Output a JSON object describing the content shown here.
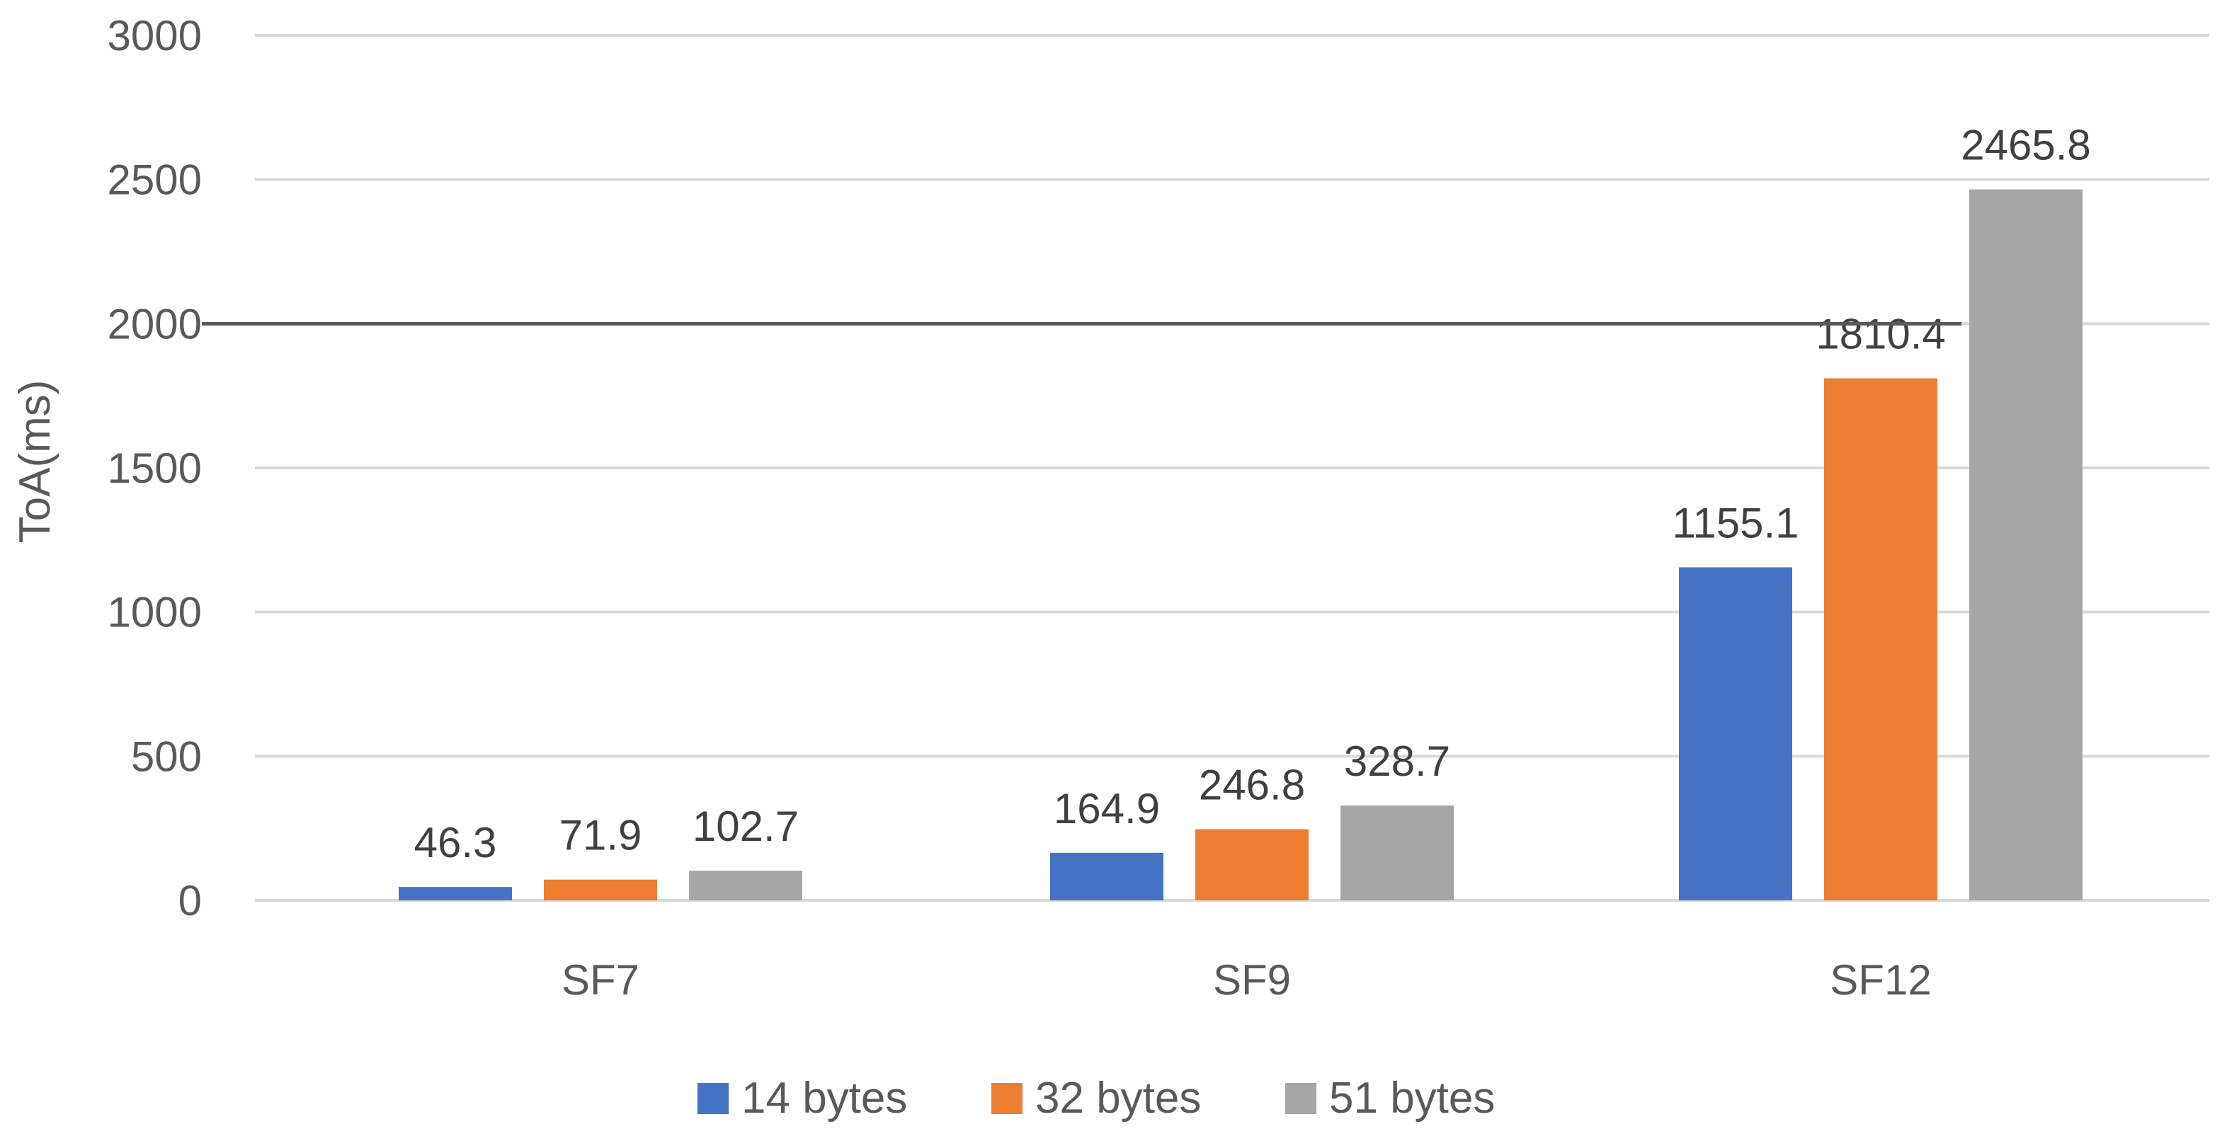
{
  "chart_data": {
    "type": "bar",
    "title": "",
    "xlabel": "",
    "ylabel": "ToA(ms)",
    "categories": [
      "SF7",
      "SF9",
      "SF12"
    ],
    "series": [
      {
        "name": "14 bytes",
        "values": [
          46.3,
          164.9,
          1155.1
        ],
        "color": "#4472C4"
      },
      {
        "name": "32 bytes",
        "values": [
          71.9,
          246.8,
          1810.4
        ],
        "color": "#ED7D31"
      },
      {
        "name": "51 bytes",
        "values": [
          102.7,
          328.7,
          2465.8
        ],
        "color": "#A5A5A5"
      }
    ],
    "value_labels": [
      [
        "46.3",
        "164.9",
        "1155.1"
      ],
      [
        "71.9",
        "246.8",
        "1810.4"
      ],
      [
        "102.7",
        "328.7",
        "2465.8"
      ]
    ],
    "ylim": [
      0,
      3000
    ],
    "yticks": [
      0,
      500,
      1000,
      1500,
      2000,
      2500,
      3000
    ],
    "ytick_labels": [
      "0",
      "500",
      "1000",
      "1500",
      "2000",
      "2500",
      "3000"
    ],
    "reference_line": {
      "y": 2000,
      "color": "#595959"
    },
    "grid": true,
    "gridline_color": "#D9D9D9",
    "text_color": "#595959",
    "legend_position": "bottom"
  }
}
